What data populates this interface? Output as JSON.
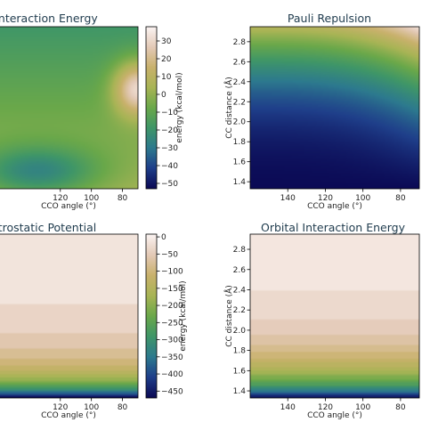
{
  "colors": {
    "cmap_gist_earth": [
      "#0b0a55",
      "#1f3f8a",
      "#2d7a8e",
      "#3f9668",
      "#6aa84a",
      "#a8b455",
      "#c9b16c",
      "#e3c9b6",
      "#fbf3f1"
    ]
  },
  "chart_data": [
    {
      "type": "heatmap",
      "title": "Interaction Energy",
      "xlabel": "CCO angle (°)",
      "ylabel": "",
      "xlim": [
        160,
        70
      ],
      "ylim": [
        1.33,
        2.95
      ],
      "xticks": [
        {
          "value": 120,
          "label": "120"
        },
        {
          "value": 100,
          "label": "100"
        },
        {
          "value": 80,
          "label": "80"
        }
      ],
      "yticks": [],
      "colorbar": {
        "label": "energy (kcal/mol)",
        "range": [
          -53,
          38
        ],
        "ticks": [
          {
            "value": 30,
            "label": "30"
          },
          {
            "value": 20,
            "label": "20"
          },
          {
            "value": 10,
            "label": "10"
          },
          {
            "value": 0,
            "label": "0"
          },
          {
            "value": -10,
            "label": "−10"
          },
          {
            "value": -20,
            "label": "−20"
          },
          {
            "value": -30,
            "label": "−30"
          },
          {
            "value": -40,
            "label": "−40"
          },
          {
            "value": -50,
            "label": "−50"
          }
        ]
      }
    },
    {
      "type": "heatmap",
      "title": "Pauli Repulsion",
      "xlabel": "CCO angle (°)",
      "ylabel": "CC distance (Å)",
      "xlim": [
        160,
        70
      ],
      "ylim": [
        1.33,
        2.95
      ],
      "xticks": [
        {
          "value": 140,
          "label": "140"
        },
        {
          "value": 120,
          "label": "120"
        },
        {
          "value": 100,
          "label": "100"
        },
        {
          "value": 80,
          "label": "80"
        }
      ],
      "yticks": [
        {
          "value": 2.8,
          "label": "2.8"
        },
        {
          "value": 2.6,
          "label": "2.6"
        },
        {
          "value": 2.4,
          "label": "2.4"
        },
        {
          "value": 2.2,
          "label": "2.2"
        },
        {
          "value": 2.0,
          "label": "2.0"
        },
        {
          "value": 1.8,
          "label": "1.8"
        },
        {
          "value": 1.6,
          "label": "1.6"
        },
        {
          "value": 1.4,
          "label": "1.4"
        }
      ]
    },
    {
      "type": "heatmap",
      "title": "Electrostatic Potential",
      "xlabel": "CCO angle (°)",
      "ylabel": "",
      "xlim": [
        160,
        70
      ],
      "ylim": [
        1.33,
        2.95
      ],
      "xticks": [
        {
          "value": 120,
          "label": "120"
        },
        {
          "value": 100,
          "label": "100"
        },
        {
          "value": 80,
          "label": "80"
        }
      ],
      "yticks": [],
      "colorbar": {
        "label": "energy (kcal/mol)",
        "range": [
          -470,
          8
        ],
        "ticks": [
          {
            "value": 0,
            "label": "0"
          },
          {
            "value": -50,
            "label": "−50"
          },
          {
            "value": -100,
            "label": "−100"
          },
          {
            "value": -150,
            "label": "−150"
          },
          {
            "value": -200,
            "label": "−200"
          },
          {
            "value": -250,
            "label": "−250"
          },
          {
            "value": -300,
            "label": "−300"
          },
          {
            "value": -350,
            "label": "−350"
          },
          {
            "value": -400,
            "label": "−400"
          },
          {
            "value": -450,
            "label": "−450"
          }
        ]
      }
    },
    {
      "type": "heatmap",
      "title": "Orbital Interaction Energy",
      "xlabel": "CCO angle (°)",
      "ylabel": "CC distance (Å)",
      "xlim": [
        160,
        70
      ],
      "ylim": [
        1.33,
        2.95
      ],
      "xticks": [
        {
          "value": 140,
          "label": "140"
        },
        {
          "value": 120,
          "label": "120"
        },
        {
          "value": 100,
          "label": "100"
        },
        {
          "value": 80,
          "label": "80"
        }
      ],
      "yticks": [
        {
          "value": 2.8,
          "label": "2.8"
        },
        {
          "value": 2.6,
          "label": "2.6"
        },
        {
          "value": 2.4,
          "label": "2.4"
        },
        {
          "value": 2.2,
          "label": "2.2"
        },
        {
          "value": 2.0,
          "label": "2.0"
        },
        {
          "value": 1.8,
          "label": "1.8"
        },
        {
          "value": 1.6,
          "label": "1.6"
        },
        {
          "value": 1.4,
          "label": "1.4"
        }
      ]
    }
  ]
}
